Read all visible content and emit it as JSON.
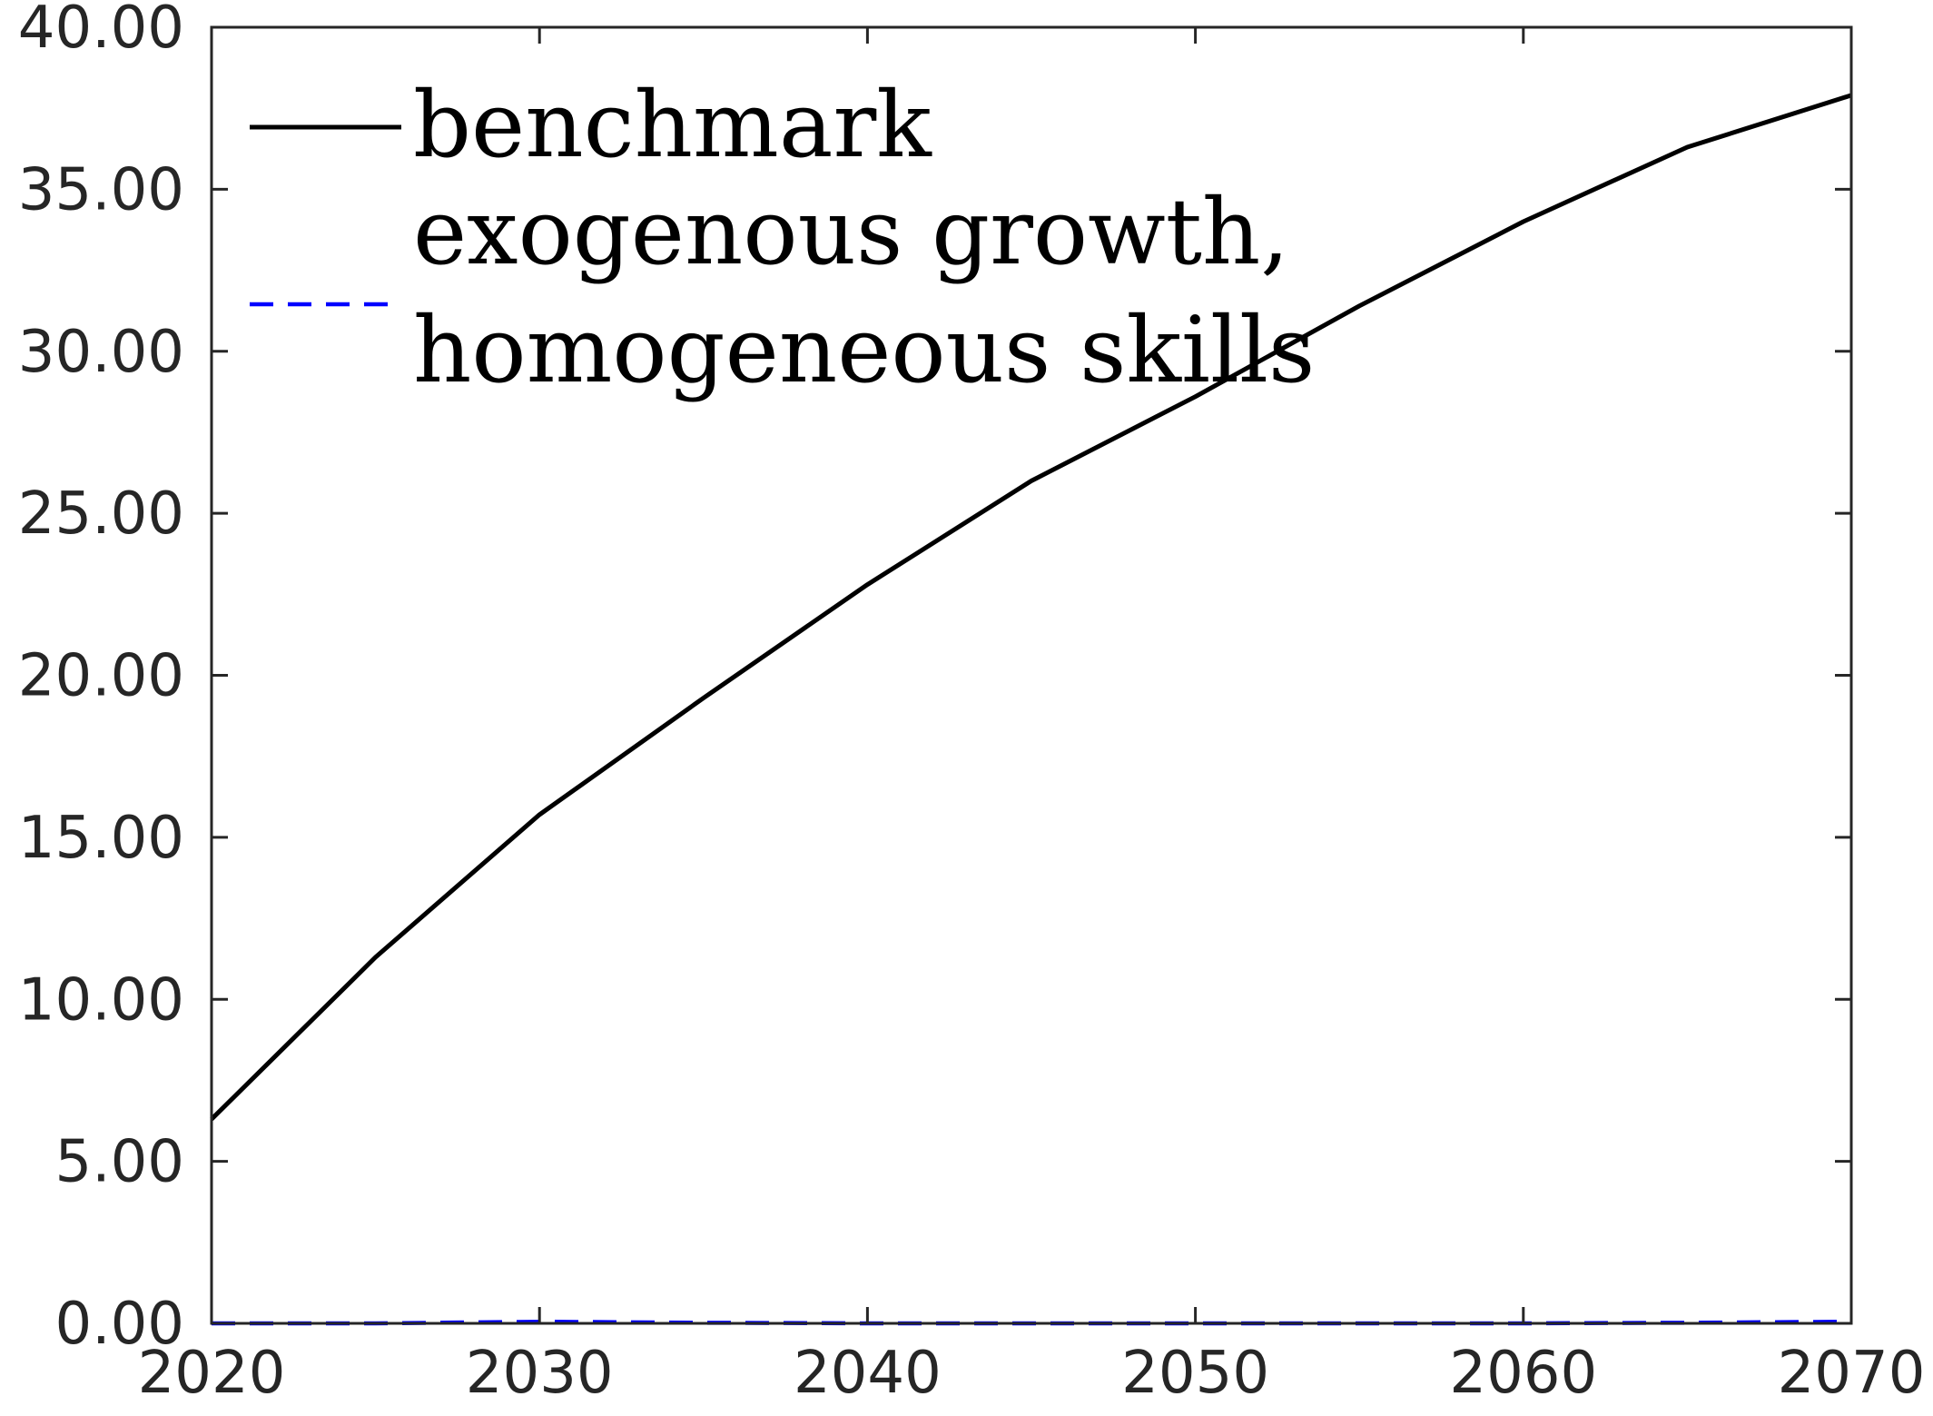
{
  "chart_data": {
    "type": "line",
    "title": "",
    "xlabel": "",
    "ylabel": "",
    "xlim": [
      2020,
      2070
    ],
    "ylim": [
      0,
      40
    ],
    "x_ticks": [
      2020,
      2030,
      2040,
      2050,
      2060,
      2070
    ],
    "x_tick_labels": [
      "2020",
      "2030",
      "2040",
      "2050",
      "2060",
      "2070"
    ],
    "y_ticks": [
      0,
      5,
      10,
      15,
      20,
      25,
      30,
      35,
      40
    ],
    "y_tick_labels": [
      "0.00",
      "5.00",
      "10.00",
      "15.00",
      "20.00",
      "25.00",
      "30.00",
      "35.00",
      "40.00"
    ],
    "grid": false,
    "legend_position": "top-left",
    "x": [
      2020,
      2025,
      2030,
      2035,
      2040,
      2045,
      2050,
      2055,
      2060,
      2065,
      2070
    ],
    "series": [
      {
        "name": "benchmark",
        "values": [
          6.3,
          11.3,
          15.7,
          19.3,
          22.8,
          26.0,
          28.6,
          31.4,
          34.0,
          36.3,
          37.9
        ],
        "color": "#000000",
        "style": "solid"
      },
      {
        "name": "exogenous growth, homogeneous skills",
        "name_lines": [
          "exogenous growth,",
          "homogeneous skills"
        ],
        "values": [
          0.0,
          0.0,
          0.05,
          0.02,
          0.0,
          0.0,
          0.0,
          0.0,
          0.0,
          0.02,
          0.05
        ],
        "color": "#0000ff",
        "style": "dashed"
      }
    ]
  }
}
